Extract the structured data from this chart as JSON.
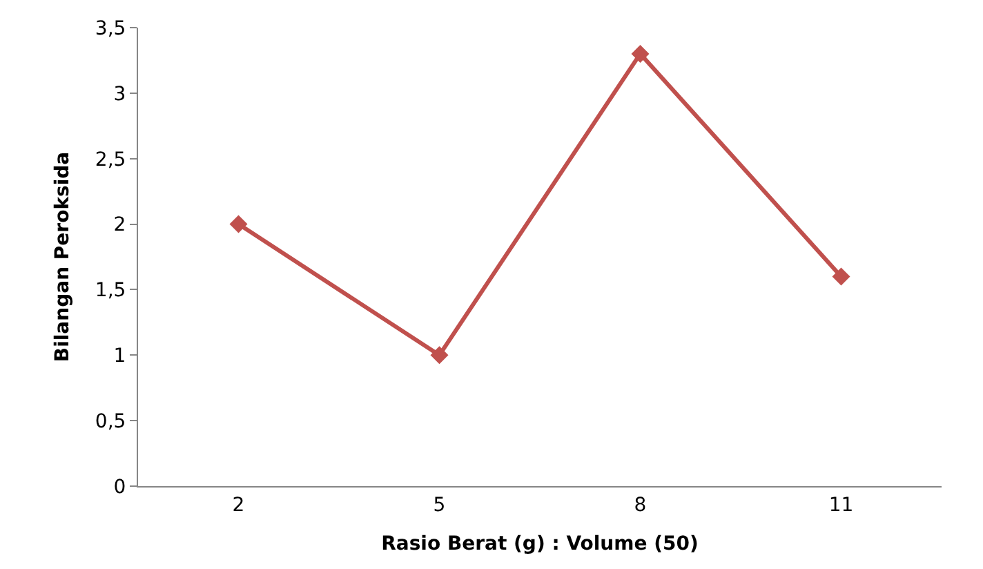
{
  "chart_data": {
    "type": "line",
    "xlabel": "Rasio Berat (g) : Volume (50)",
    "ylabel": "Bilangan Peroksida",
    "categories": [
      "2",
      "5",
      "8",
      "11"
    ],
    "series": [
      {
        "color": "#c0504d",
        "values": [
          2,
          1,
          3.3,
          1.6
        ]
      }
    ],
    "ylim": [
      0,
      3.5
    ],
    "yticks": [
      0,
      {
        "value": 0.5,
        "label": "0,5"
      },
      1,
      {
        "value": 1.5,
        "label": "1,5"
      },
      2,
      {
        "value": 2.5,
        "label": "2,5"
      },
      3,
      {
        "value": 3.5,
        "label": "3,5"
      }
    ],
    "marker": "diamond",
    "line_style": "solid"
  }
}
